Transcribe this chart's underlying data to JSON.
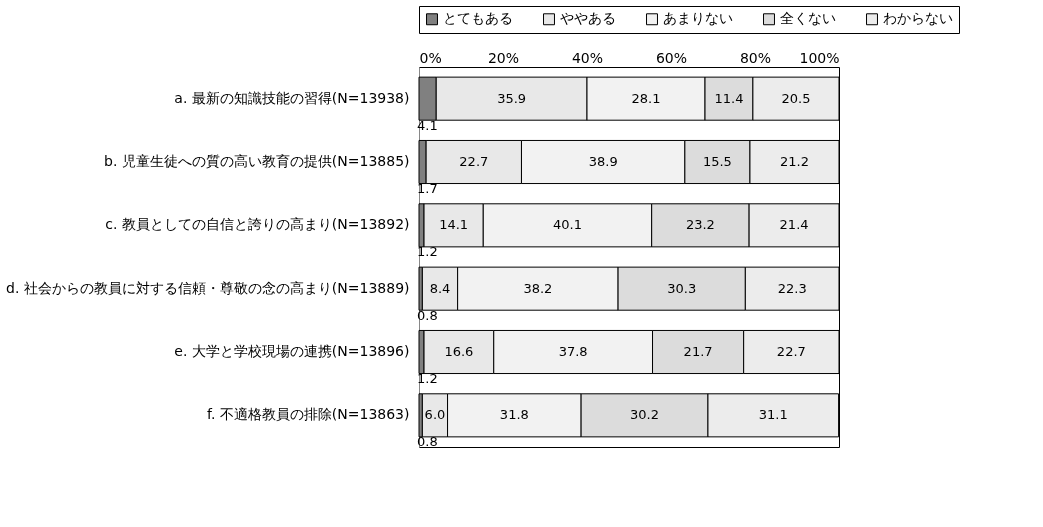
{
  "chart_data": {
    "type": "bar",
    "orientation": "horizontal",
    "stacked": true,
    "legend": "top",
    "grid": false,
    "categories": [
      "a. 最新の知識技能の習得(N=13938)",
      "b. 児童生徒への質の高い教育の提供(N=13885)",
      "c. 教員としての自信と誇りの高まり(N=13892)",
      "d. 社会からの教員に対する信頼・尊敬の念の高まり(N=13889)",
      "e. 大学と学校現場の連携(N=13896)",
      "f. 不適格教員の排除(N=13863)"
    ],
    "xlim": [
      0,
      100
    ],
    "xticks": [
      {
        "value": 0,
        "label": "0%"
      },
      {
        "value": 20,
        "label": "20%"
      },
      {
        "value": 40,
        "label": "40%"
      },
      {
        "value": 60,
        "label": "60%"
      },
      {
        "value": 80,
        "label": "80%"
      },
      {
        "value": 100,
        "label": "100%"
      }
    ],
    "series": [
      {
        "name": "とてもある",
        "color": "#808080",
        "values": [
          4.1,
          1.7,
          1.2,
          0.8,
          1.2,
          0.8
        ],
        "value_labels": [
          "4.1",
          "1.7",
          "1.2",
          "0.8",
          "1.2",
          "0.8"
        ]
      },
      {
        "name": "ややある",
        "color": "#e8e8e8",
        "values": [
          35.9,
          22.7,
          14.1,
          8.4,
          16.6,
          6.0
        ],
        "value_labels": [
          "35.9",
          "22.7",
          "14.1",
          "8.4",
          "16.6",
          "6.0"
        ]
      },
      {
        "name": "あまりない",
        "color": "#f2f2f2",
        "values": [
          28.1,
          38.9,
          40.1,
          38.2,
          37.8,
          31.8
        ],
        "value_labels": [
          "28.1",
          "38.9",
          "40.1",
          "38.2",
          "37.8",
          "31.8"
        ]
      },
      {
        "name": "全くない",
        "color": "#dcdcdc",
        "values": [
          11.4,
          15.5,
          23.2,
          30.3,
          21.7,
          30.2
        ],
        "value_labels": [
          "11.4",
          "15.5",
          "23.2",
          "30.3",
          "21.7",
          "30.2"
        ]
      },
      {
        "name": "わからない",
        "color": "#ececec",
        "values": [
          20.5,
          21.2,
          21.4,
          22.3,
          22.7,
          31.1
        ],
        "value_labels": [
          "20.5",
          "21.2",
          "21.4",
          "22.3",
          "22.7",
          "31.1"
        ]
      }
    ]
  }
}
